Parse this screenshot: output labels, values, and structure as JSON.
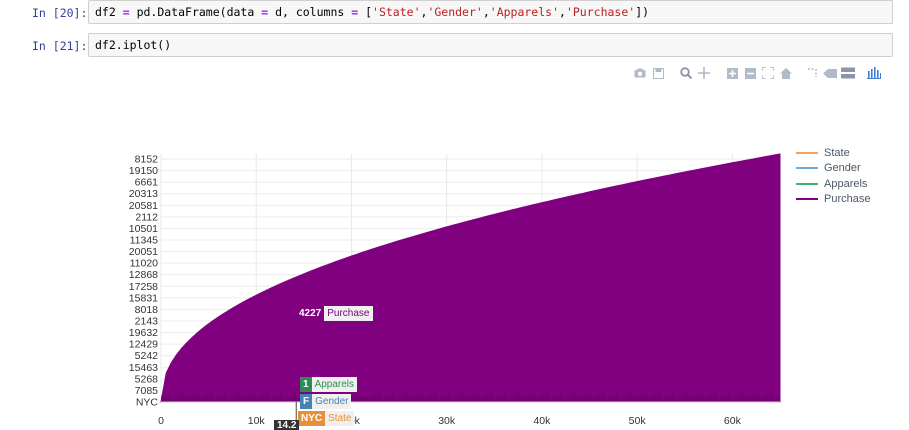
{
  "cells": [
    {
      "prompt": "In [20]:",
      "code_parts": [
        {
          "text": "df2 ",
          "cls": ""
        },
        {
          "text": "=",
          "cls": "op"
        },
        {
          "text": " pd.DataFrame(data ",
          "cls": ""
        },
        {
          "text": "=",
          "cls": "op"
        },
        {
          "text": " d, columns ",
          "cls": ""
        },
        {
          "text": "=",
          "cls": "op"
        },
        {
          "text": " [",
          "cls": ""
        },
        {
          "text": "'State'",
          "cls": "str"
        },
        {
          "text": ",",
          "cls": ""
        },
        {
          "text": "'Gender'",
          "cls": "str"
        },
        {
          "text": ",",
          "cls": ""
        },
        {
          "text": "'Apparels'",
          "cls": "str"
        },
        {
          "text": ",",
          "cls": ""
        },
        {
          "text": "'Purchase'",
          "cls": "str"
        },
        {
          "text": "])",
          "cls": ""
        }
      ]
    },
    {
      "prompt": "In [21]:",
      "code_parts": [
        {
          "text": "df2.iplot()",
          "cls": ""
        }
      ]
    }
  ],
  "modebar": {
    "icons": [
      "camera-icon",
      "save-icon",
      "zoom-icon",
      "pan-icon",
      "zoom-in-icon",
      "zoom-out-icon",
      "autoscale-icon",
      "home-icon",
      "spike-icon",
      "hover-closest-icon",
      "hover-compare-icon",
      "plotly-logo-icon"
    ]
  },
  "chart_data": {
    "type": "area",
    "x_ticks": [
      "0",
      "10k",
      "20k",
      "30k",
      "40k",
      "50k",
      "60k"
    ],
    "x_tick_values": [
      0,
      10000,
      20000,
      30000,
      40000,
      50000,
      60000
    ],
    "xlim": [
      0,
      65000
    ],
    "y_tick_labels": [
      "NYC",
      "7085",
      "5268",
      "15463",
      "5242",
      "12429",
      "19632",
      "2143",
      "8018",
      "15831",
      "17258",
      "12868",
      "11020",
      "20051",
      "11345",
      "10501",
      "2112",
      "20581",
      "20313",
      "6661",
      "19150",
      "8152"
    ],
    "grid": true,
    "legend_position": "top-right",
    "series": [
      {
        "name": "State",
        "color": "#f4a460"
      },
      {
        "name": "Gender",
        "color": "#6fa8dc"
      },
      {
        "name": "Apparels",
        "color": "#3cb371"
      },
      {
        "name": "Purchase",
        "color": "#800080"
      }
    ],
    "hover_labels": [
      {
        "value": "4227",
        "name": "Purchase",
        "color": "#800080"
      },
      {
        "value": "1",
        "name": "Apparels",
        "color": "#2e8b57"
      },
      {
        "value": "F",
        "name": "Gender",
        "color": "#4682b4"
      },
      {
        "value": "NYC",
        "name": "State",
        "color": "#e69138"
      }
    ],
    "hover_x_label": "14.2"
  }
}
